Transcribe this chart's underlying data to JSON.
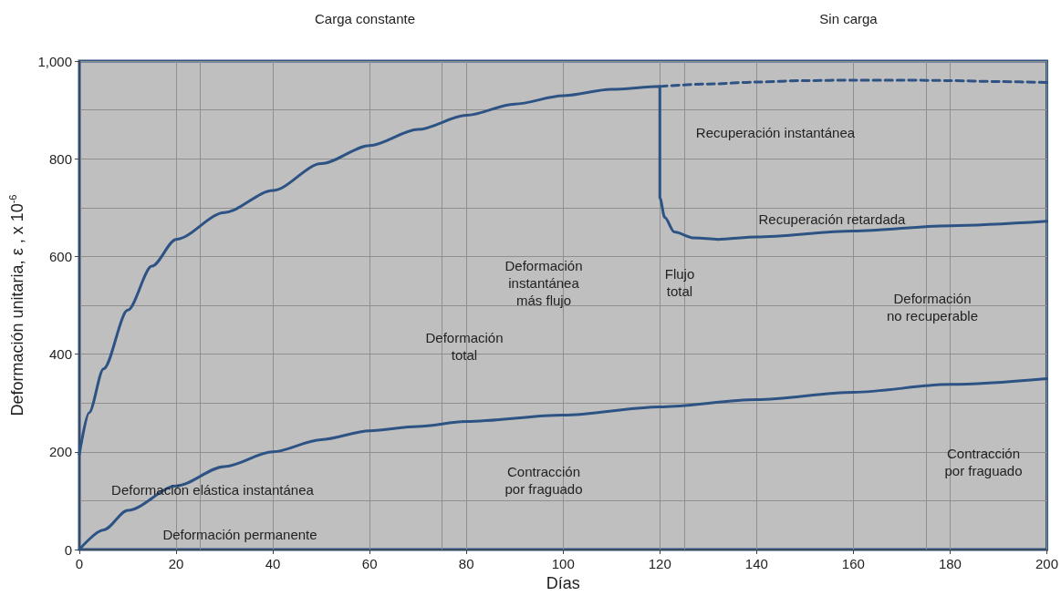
{
  "chart_data": {
    "type": "line",
    "xlabel": "Días",
    "ylabel": "Deformación unitaria, ε , x 10$^{-6}$",
    "xlim": [
      0,
      200
    ],
    "xticks": [
      0,
      20,
      40,
      60,
      80,
      100,
      120,
      140,
      160,
      180,
      200
    ],
    "ylim": [
      0,
      1000
    ],
    "yticks": [
      0,
      200,
      400,
      600,
      800,
      {
        "value": 1000,
        "label": "1,000"
      }
    ],
    "grid": true,
    "marker": "none",
    "series": [
      {
        "color": "#2d5384",
        "line_style": "solid",
        "x": [
          0,
          2,
          5,
          10,
          15,
          20,
          30,
          40,
          50,
          60,
          70,
          80,
          90,
          100,
          110,
          120,
          120,
          121,
          123,
          127,
          132,
          140,
          160,
          180,
          200
        ],
        "values": [
          195,
          280,
          370,
          490,
          580,
          635,
          690,
          735,
          790,
          827,
          860,
          889,
          912,
          929,
          942,
          948,
          720,
          680,
          650,
          638,
          635,
          640,
          652,
          663,
          672
        ]
      },
      {
        "color": "#2d5384",
        "line_style": "dashed",
        "x": [
          120,
          130,
          140,
          150,
          160,
          170,
          180,
          190,
          200
        ],
        "values": [
          948,
          953,
          957,
          960,
          961,
          961,
          960,
          958,
          956
        ]
      },
      {
        "color": "#2d5384",
        "line_style": "solid",
        "x": [
          0,
          5,
          10,
          20,
          30,
          40,
          50,
          60,
          70,
          80,
          100,
          120,
          140,
          160,
          180,
          200
        ],
        "values": [
          0,
          40,
          80,
          130,
          170,
          200,
          225,
          243,
          252,
          262,
          275,
          292,
          307,
          322,
          338,
          350
        ]
      }
    ],
    "annotations": [
      "Carga constante",
      "Sin carga",
      "Deformación elástica instantánea",
      "Deformación permanente",
      "Deformación\ninstantánea\nmás flujo",
      "Deformación\ntotal",
      "Contracción\npor fraguado",
      "Recuperación instantánea",
      "Recuperación retardada",
      "Flujo\ntotal",
      "Deformación\nno recuperable",
      "Contracción\npor fraguado"
    ]
  }
}
